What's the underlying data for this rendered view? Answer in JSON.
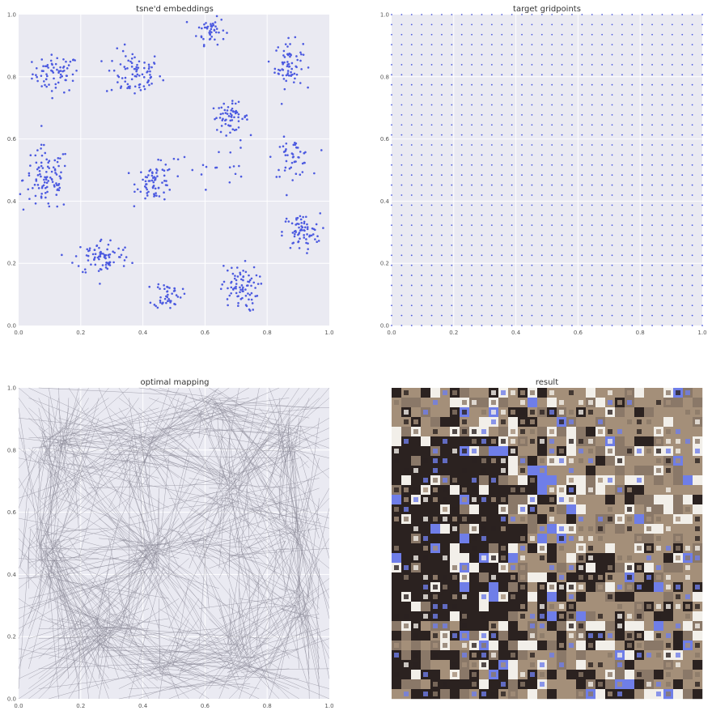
{
  "colors": {
    "plot_bg": "#eaeaf2",
    "grid": "#ffffff",
    "point": "#4c5ae0",
    "arrow": "#8d8c99",
    "tick_text": "#555555",
    "title_text": "#333333",
    "mosaic_dark": "#2b2220",
    "mosaic_mid": "#8a7868",
    "mosaic_light": "#f2efe9",
    "mosaic_tan": "#a48f79",
    "mosaic_blue": "#6f7ee8"
  },
  "chart_data": [
    {
      "type": "scatter",
      "title": "tsne'd embeddings",
      "xlim": [
        0,
        1
      ],
      "ylim": [
        0,
        1
      ],
      "xticks": [
        "0.0",
        "0.2",
        "0.4",
        "0.6",
        "0.8",
        "1.0"
      ],
      "yticks": [
        "0.0",
        "0.2",
        "0.4",
        "0.6",
        "0.8",
        "1.0"
      ],
      "grid": true,
      "clusters": [
        {
          "center": [
            0.12,
            0.81
          ],
          "spread": [
            0.05,
            0.04
          ],
          "count": 70
        },
        {
          "center": [
            0.37,
            0.81
          ],
          "spread": [
            0.06,
            0.05
          ],
          "count": 80
        },
        {
          "center": [
            0.62,
            0.95
          ],
          "spread": [
            0.03,
            0.03
          ],
          "count": 45
        },
        {
          "center": [
            0.87,
            0.84
          ],
          "spread": [
            0.03,
            0.05
          ],
          "count": 70
        },
        {
          "center": [
            0.68,
            0.67
          ],
          "spread": [
            0.04,
            0.03
          ],
          "count": 60
        },
        {
          "center": [
            0.09,
            0.47
          ],
          "spread": [
            0.05,
            0.07
          ],
          "count": 100
        },
        {
          "center": [
            0.44,
            0.46
          ],
          "spread": [
            0.04,
            0.04
          ],
          "count": 70
        },
        {
          "center": [
            0.88,
            0.54
          ],
          "spread": [
            0.04,
            0.04
          ],
          "count": 50
        },
        {
          "center": [
            0.91,
            0.3
          ],
          "spread": [
            0.04,
            0.04
          ],
          "count": 70
        },
        {
          "center": [
            0.27,
            0.22
          ],
          "spread": [
            0.06,
            0.04
          ],
          "count": 80
        },
        {
          "center": [
            0.48,
            0.1
          ],
          "spread": [
            0.03,
            0.03
          ],
          "count": 45
        },
        {
          "center": [
            0.71,
            0.12
          ],
          "spread": [
            0.04,
            0.05
          ],
          "count": 80
        },
        {
          "center": [
            0.63,
            0.52
          ],
          "spread": [
            0.08,
            0.05
          ],
          "count": 20
        }
      ]
    },
    {
      "type": "scatter",
      "title": "target gridpoints",
      "xlim": [
        0,
        1
      ],
      "ylim": [
        0,
        1
      ],
      "xticks": [
        "0.0",
        "0.2",
        "0.4",
        "0.6",
        "0.8",
        "1.0"
      ],
      "yticks": [
        "0.0",
        "0.2",
        "0.4",
        "0.6",
        "0.8",
        "1.0"
      ],
      "grid": true,
      "grid_points": 32
    },
    {
      "type": "quiver",
      "title": "optimal mapping",
      "xlim": [
        0,
        1
      ],
      "ylim": [
        0,
        1
      ],
      "xticks": [
        "0.0",
        "0.2",
        "0.4",
        "0.6",
        "0.8",
        "1.0"
      ],
      "yticks": [
        "0.0",
        "0.2",
        "0.4",
        "0.6",
        "0.8",
        "1.0"
      ],
      "grid": true,
      "grid_points": 32
    },
    {
      "type": "image",
      "title": "result",
      "tiles": 32
    }
  ]
}
